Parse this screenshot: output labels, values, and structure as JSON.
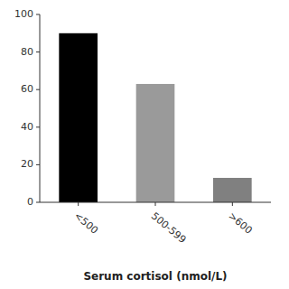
{
  "chart_data": {
    "type": "bar",
    "categories": [
      "<500",
      "500-599",
      ">600"
    ],
    "values": [
      90,
      63,
      13
    ],
    "colors": [
      "#000000",
      "#9a9a9a",
      "#808080"
    ],
    "xlabel": "Serum cortisol (nmol/L)",
    "ylim": [
      0,
      100
    ],
    "yticks": [
      0,
      20,
      40,
      60,
      80,
      100
    ],
    "grid": false
  }
}
